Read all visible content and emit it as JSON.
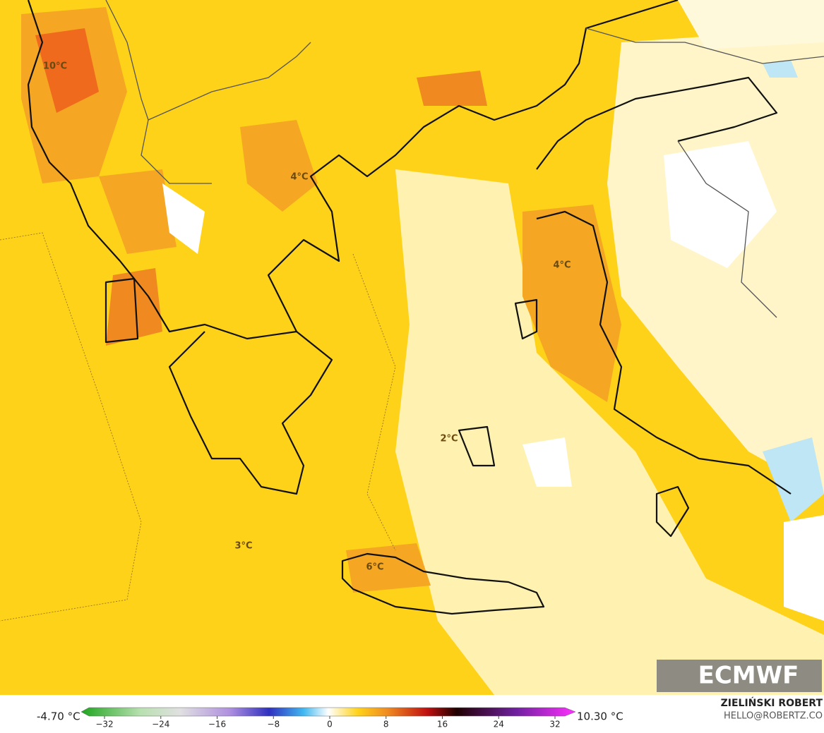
{
  "map": {
    "labels": [
      "10°C",
      "4°C",
      "4°C",
      "2°C",
      "3°C",
      "6°C"
    ]
  },
  "logo": "ECMWF",
  "colorbar": {
    "min_label": "-4.70 °C",
    "max_label": "10.30 °C",
    "ticks": [
      {
        "value": -32,
        "label": "−32"
      },
      {
        "value": -24,
        "label": "−24"
      },
      {
        "value": -16,
        "label": "−16"
      },
      {
        "value": -8,
        "label": "−8"
      },
      0,
      8,
      16,
      24,
      32
    ]
  },
  "credit": {
    "name": "ZIELIŃSKI ROBERT",
    "email": "HELLO@ROBERTZ.CO"
  }
}
